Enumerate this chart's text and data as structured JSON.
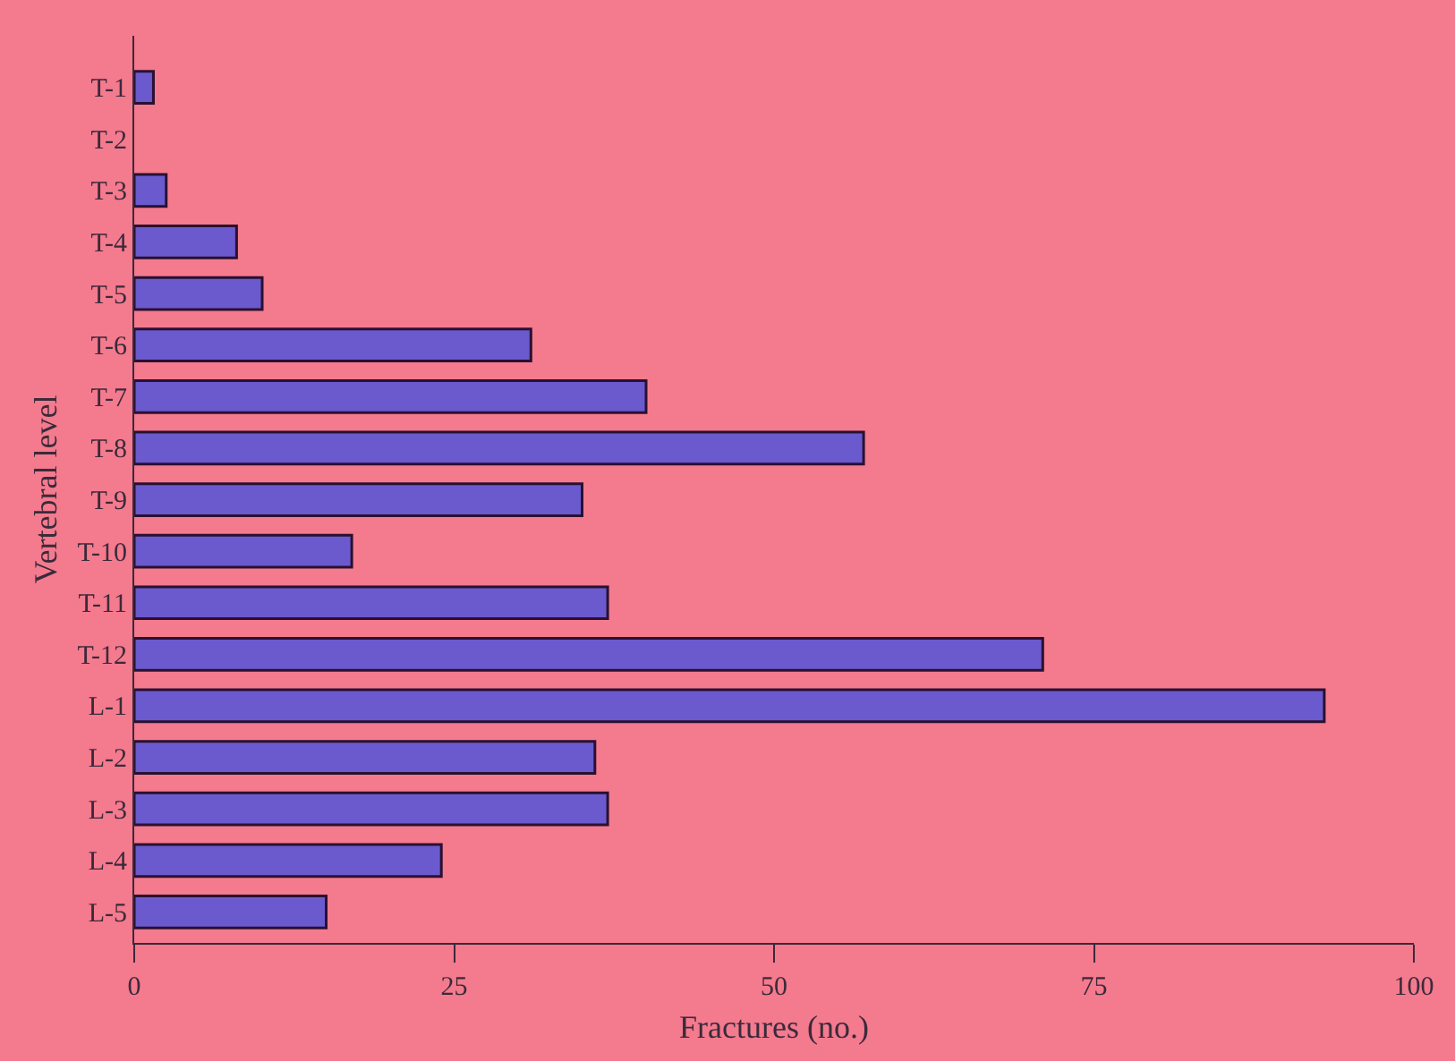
{
  "chart_data": {
    "type": "bar",
    "orientation": "horizontal",
    "xlabel": "Fractures (no.)",
    "ylabel": "Vertebral level",
    "categories": [
      "T-1",
      "T-2",
      "T-3",
      "T-4",
      "T-5",
      "T-6",
      "T-7",
      "T-8",
      "T-9",
      "T-10",
      "T-11",
      "T-12",
      "L-1",
      "L-2",
      "L-3",
      "L-4",
      "L-5"
    ],
    "values": [
      1.5,
      0,
      2.5,
      8,
      10,
      31,
      40,
      57,
      35,
      17,
      37,
      71,
      93,
      36,
      37,
      24,
      15
    ],
    "color": "#6a5acd",
    "xlim": [
      0,
      100
    ],
    "xticks": [
      0,
      25,
      50,
      75,
      100
    ],
    "grid": false
  }
}
